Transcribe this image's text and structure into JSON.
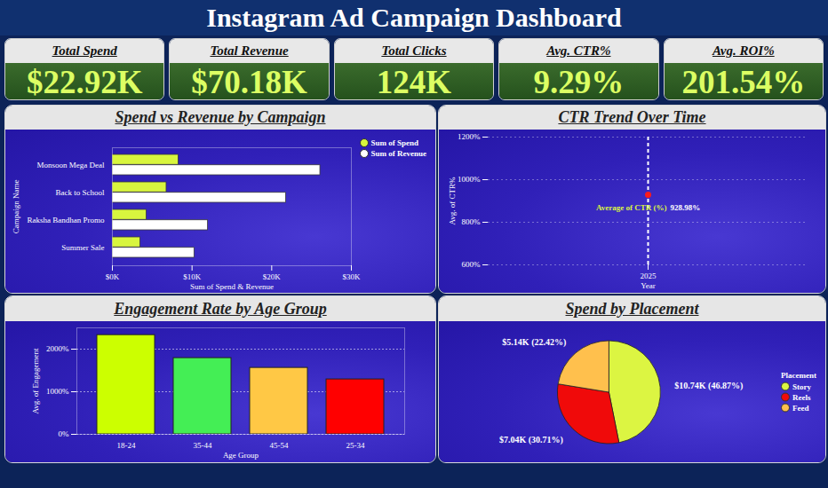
{
  "title": "Instagram Ad Campaign Dashboard",
  "kpis": [
    {
      "label": "Total Spend",
      "value": "$22.92K"
    },
    {
      "label": "Total Revenue",
      "value": "$70.18K"
    },
    {
      "label": "Total Clicks",
      "value": "124K"
    },
    {
      "label": "Avg. CTR%",
      "value": "9.29%"
    },
    {
      "label": "Avg. ROI%",
      "value": "201.54%"
    }
  ],
  "chart_data": [
    {
      "type": "bar",
      "title": "Spend vs Revenue by Campaign",
      "orientation": "horizontal",
      "categories": [
        "Monsoon Mega Deal",
        "Back to School",
        "Raksha Bandhan Promo",
        "Summer Sale"
      ],
      "series": [
        {
          "name": "Sum of Spend",
          "color": "#d8f53e",
          "values": [
            8300,
            6800,
            4300,
            3500
          ]
        },
        {
          "name": "Sum of Revenue",
          "color": "#ffffff",
          "values": [
            26100,
            21800,
            12000,
            10300
          ]
        }
      ],
      "xlabel": "Sum of Spend & Revenue",
      "ylabel": "Campaign Name",
      "xlim": [
        0,
        30000
      ],
      "xticks": [
        {
          "value": 0,
          "label": "$0K"
        },
        {
          "value": 10000,
          "label": "$10K"
        },
        {
          "value": 20000,
          "label": "$20K"
        },
        {
          "value": 30000,
          "label": "$30K"
        }
      ],
      "legend": "top-right",
      "grid": false
    },
    {
      "type": "line",
      "title": "CTR Trend Over Time",
      "categories": [
        "2025"
      ],
      "series": [
        {
          "name": "Average of CTR (%)",
          "color": "#ff1a1a",
          "values": [
            928.98
          ],
          "value_labels": [
            "928.98%"
          ],
          "marker": "circle"
        }
      ],
      "data_labels": true,
      "xlabel": "Year",
      "ylabel": "Avg. of CTR%",
      "ylim": [
        600,
        1200
      ],
      "yticks": [
        {
          "value": 600,
          "label": "600%"
        },
        {
          "value": 800,
          "label": "800%"
        },
        {
          "value": 1000,
          "label": "1000%"
        },
        {
          "value": 1200,
          "label": "1200%"
        }
      ],
      "grid": true
    },
    {
      "type": "bar",
      "title": "Engagement Rate by Age Group",
      "categories": [
        "18-24",
        "35-44",
        "45-54",
        "25-34"
      ],
      "values": [
        2330,
        1790,
        1560,
        1290
      ],
      "colors": [
        "#ccff00",
        "#44ee55",
        "#ffc845",
        "#ff0000"
      ],
      "xlabel": "Age Group",
      "ylabel": "Avg. of Engagement",
      "ylim": [
        0,
        2500
      ],
      "yticks": [
        {
          "value": 0,
          "label": "0%"
        },
        {
          "value": 1000,
          "label": "1000%"
        },
        {
          "value": 2000,
          "label": "2000%"
        }
      ],
      "grid": true
    },
    {
      "type": "pie",
      "title": "Spend by Placement",
      "categories": [
        "Story",
        "Reels",
        "Feed"
      ],
      "values": [
        10740,
        7040,
        5140
      ],
      "value_labels": [
        "$10.74K (46.87%)",
        "$7.04K (30.71%)",
        "$5.14K (22.42%)"
      ],
      "colors": [
        "#dcf542",
        "#f00a0a",
        "#ffc04d"
      ],
      "data_labels": true,
      "legend_title": "Placement",
      "legend": "right"
    }
  ]
}
